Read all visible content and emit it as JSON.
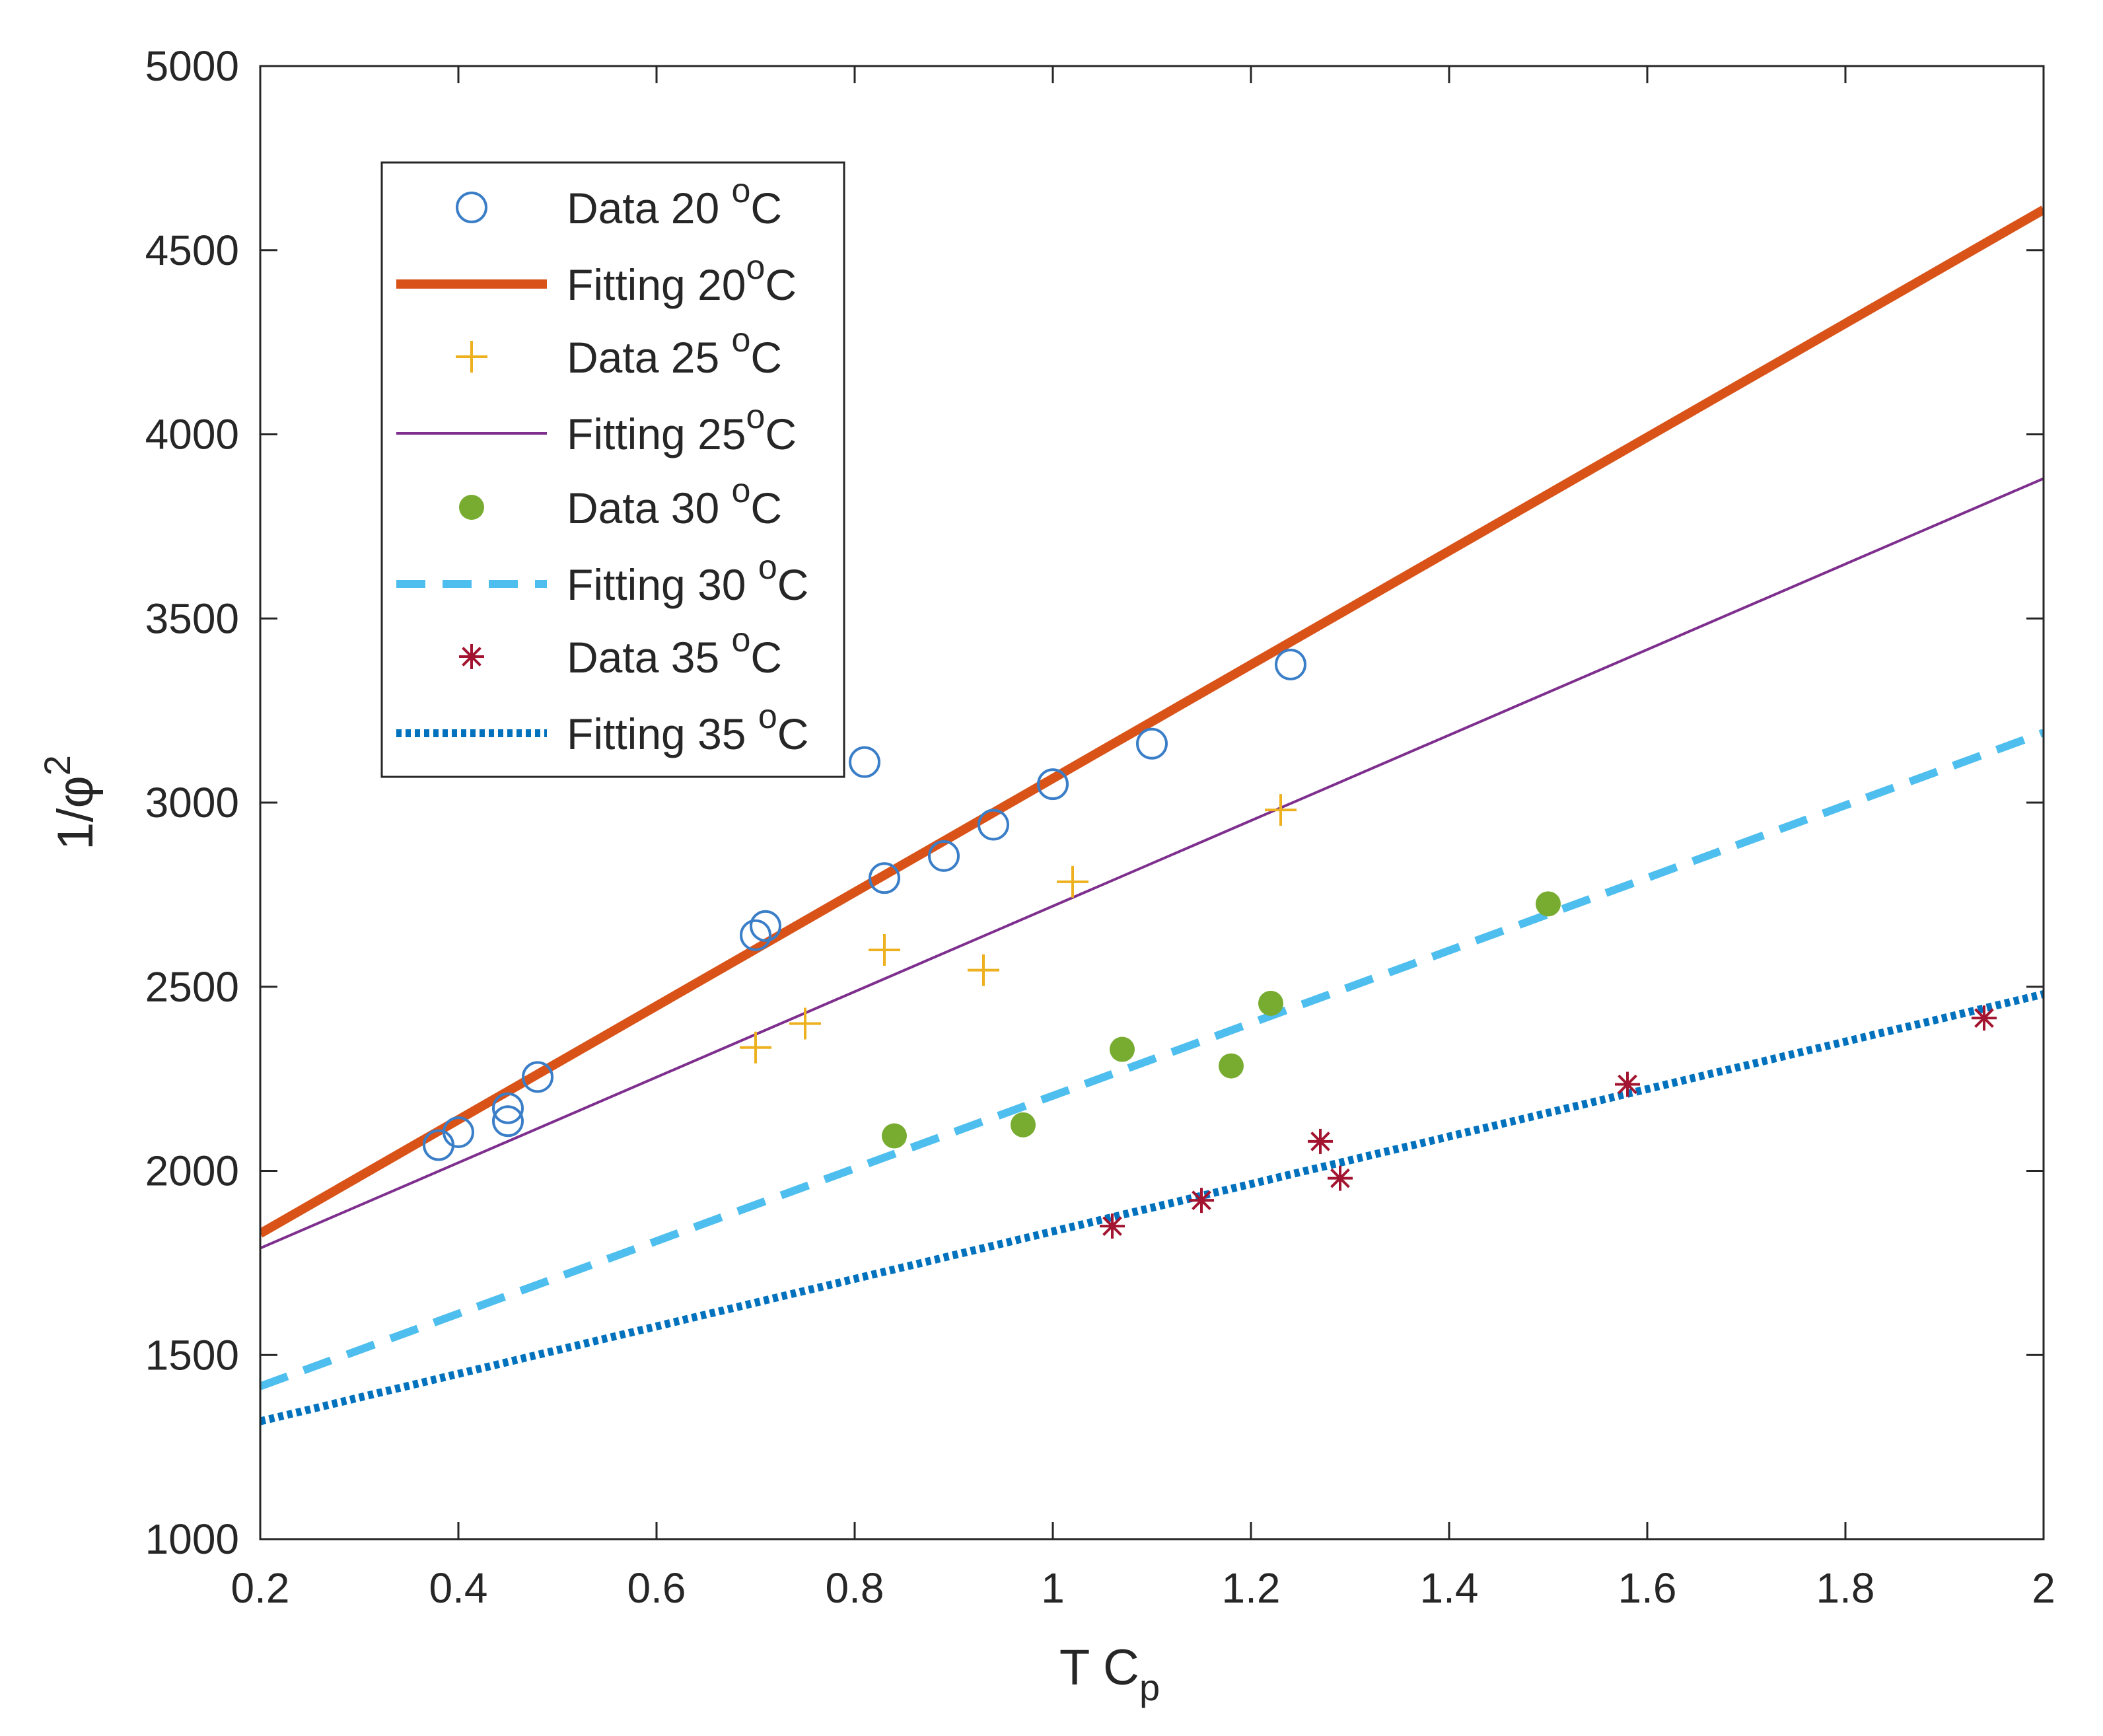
{
  "chart_data": {
    "type": "scatter",
    "title": "",
    "xlabel": "T C",
    "xlabel_sub": "p",
    "ylabel": "1/φ",
    "ylabel_sup": "2",
    "xlim": [
      0.2,
      2
    ],
    "ylim": [
      1000,
      5000
    ],
    "xticks": [
      0.2,
      0.4,
      0.6,
      0.8,
      1,
      1.2,
      1.4,
      1.6,
      1.8,
      2
    ],
    "yticks": [
      1000,
      1500,
      2000,
      2500,
      3000,
      3500,
      4000,
      4500,
      5000
    ],
    "xtick_labels": [
      "0.2",
      "0.4",
      "0.6",
      "0.8",
      "1",
      "1.2",
      "1.4",
      "1.6",
      "1.8",
      "2"
    ],
    "ytick_labels": [
      "1000",
      "1500",
      "2000",
      "2500",
      "3000",
      "3500",
      "4000",
      "4500",
      "5000"
    ],
    "legend_position": "top-left",
    "series": [
      {
        "name": "Data 20 °C",
        "legend_text": "Data 20 ",
        "legend_unit": "C",
        "legend_sup": "o",
        "kind": "scatter",
        "marker": "circle-open",
        "color": "#3A7EC8",
        "x": [
          0.38,
          0.4,
          0.45,
          0.45,
          0.48,
          0.7,
          0.71,
          0.81,
          0.83,
          0.89,
          0.94,
          1.0,
          1.1,
          1.24
        ],
        "y": [
          2070,
          2105,
          2170,
          2135,
          2255,
          2640,
          2665,
          3110,
          2795,
          2855,
          2940,
          3050,
          3160,
          3375
        ]
      },
      {
        "name": "Fitting 20°C",
        "legend_text": "Fitting 20",
        "legend_unit": "C",
        "legend_sup": "o",
        "kind": "line",
        "style": "solid-thick",
        "color": "#D95319",
        "x": [
          0.2,
          2
        ],
        "y": [
          1830,
          4610
        ]
      },
      {
        "name": "Data 25 °C",
        "legend_text": "Data 25 ",
        "legend_unit": "C",
        "legend_sup": "o",
        "kind": "scatter",
        "marker": "plus",
        "color": "#EDB120",
        "x": [
          0.7,
          0.75,
          0.83,
          0.93,
          1.02,
          1.23
        ],
        "y": [
          2335,
          2400,
          2600,
          2545,
          2785,
          2980
        ]
      },
      {
        "name": "Fitting 25°C",
        "legend_text": "Fitting 25",
        "legend_unit": "C",
        "legend_sup": "o",
        "kind": "line",
        "style": "solid-thin",
        "color": "#7E2F8E",
        "x": [
          0.2,
          2
        ],
        "y": [
          1790,
          3880
        ]
      },
      {
        "name": "Data 30 °C",
        "legend_text": "Data 30 ",
        "legend_unit": "C",
        "legend_sup": "o",
        "kind": "scatter",
        "marker": "dot",
        "color": "#77AC30",
        "x": [
          0.84,
          0.97,
          1.07,
          1.18,
          1.22,
          1.5
        ],
        "y": [
          2095,
          2125,
          2330,
          2285,
          2455,
          2725
        ]
      },
      {
        "name": "Fitting 30 °C",
        "legend_text": "Fitting 30 ",
        "legend_unit": "C",
        "legend_sup": "o",
        "kind": "line",
        "style": "dashed",
        "color": "#4DBEEE",
        "x": [
          0.2,
          2
        ],
        "y": [
          1415,
          3190
        ]
      },
      {
        "name": "Data 35 °C",
        "legend_text": "Data 35 ",
        "legend_unit": "C",
        "legend_sup": "o",
        "kind": "scatter",
        "marker": "asterisk",
        "color": "#A2142F",
        "x": [
          1.06,
          1.15,
          1.27,
          1.29,
          1.58,
          1.94
        ],
        "y": [
          1850,
          1920,
          2080,
          1980,
          2235,
          2415
        ]
      },
      {
        "name": "Fitting 35 °C",
        "legend_text": "Fitting 35 ",
        "legend_unit": "C",
        "legend_sup": "o",
        "kind": "line",
        "style": "dotted",
        "color": "#0072BD",
        "x": [
          0.2,
          2
        ],
        "y": [
          1320,
          2480
        ]
      }
    ]
  }
}
